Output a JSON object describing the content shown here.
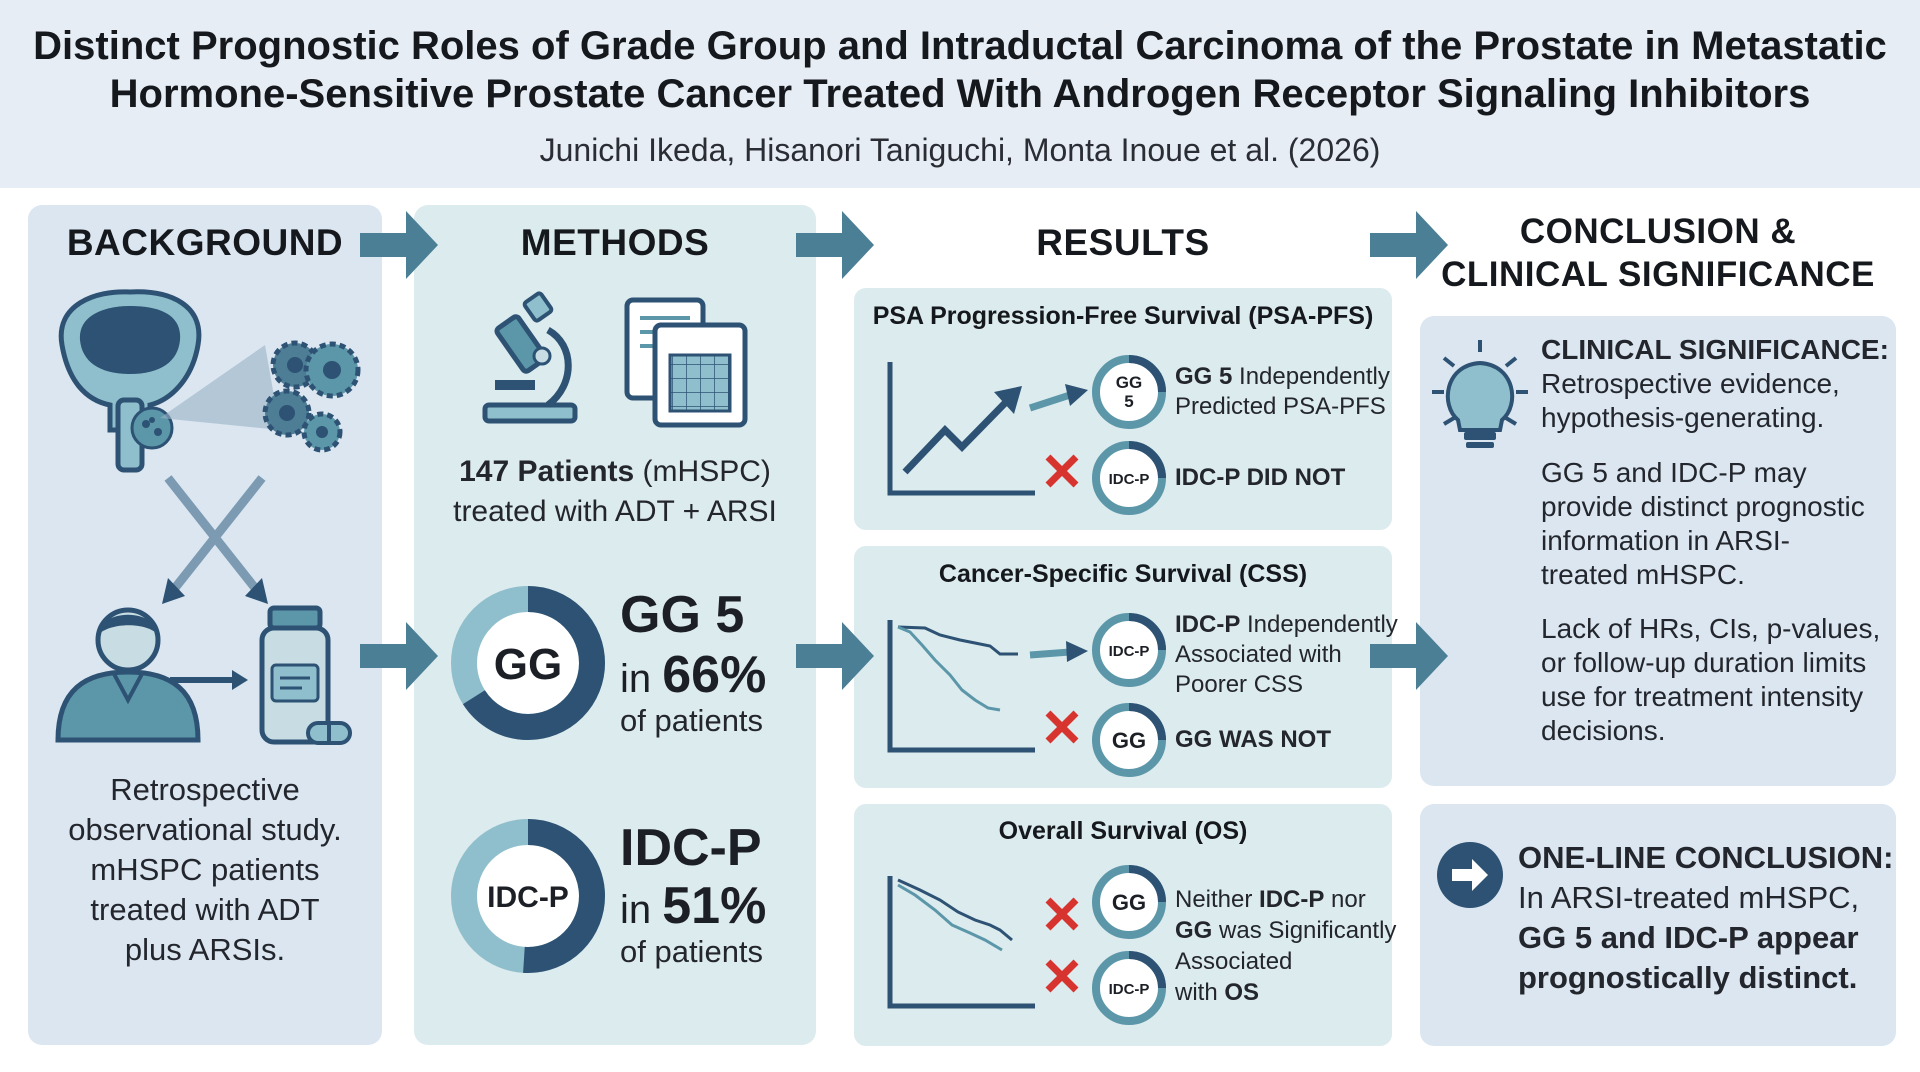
{
  "header": {
    "title_line1": "Distinct Prognostic Roles of Grade Group and Intraductal Carcinoma of the Prostate in Metastatic",
    "title_line2": "Hormone-Sensitive Prostate Cancer Treated With Androgen Receptor Signaling Inhibitors",
    "authors": "Junichi Ikeda, Hisanori Taniguchi, Monta Inoue et al. (2026)"
  },
  "background": {
    "heading": "BACKGROUND",
    "text_lines": [
      "Retrospective",
      "observational study.",
      "mHSPC patients",
      "treated with ADT",
      "plus ARSIs."
    ]
  },
  "methods": {
    "heading": "METHODS",
    "patients_bold": "147 Patients",
    "patients_rest": " (mHSPC)",
    "treatment": "treated with ADT + ARSI",
    "gg": {
      "ring_label": "GG",
      "big": "GG 5",
      "in": "in ",
      "percent": "66%",
      "percent_value": 66,
      "of": "of patients"
    },
    "idcp": {
      "ring_label": "IDC-P",
      "big": "IDC-P",
      "in": "in ",
      "percent": "51%",
      "percent_value": 51,
      "of": "of patients"
    }
  },
  "results": {
    "heading": "RESULTS",
    "pfs": {
      "title": "PSA Progression-Free Survival (PSA-PFS)",
      "gg_badge_line1": "GG",
      "gg_badge_line2": "5",
      "gg_text_bold": "GG 5",
      "gg_text_rest": " Independently",
      "gg_text_line2": "Predicted PSA-PFS",
      "idcp_badge": "IDC-P",
      "idcp_text": "IDC-P DID NOT"
    },
    "css": {
      "title": "Cancer-Specific Survival (CSS)",
      "idcp_badge": "IDC-P",
      "idcp_text_bold": "IDC-P",
      "idcp_text_rest": " Independently",
      "idcp_text_line2": "Associated with",
      "idcp_text_line3": "Poorer CSS",
      "gg_badge": "GG",
      "gg_text": "GG WAS NOT"
    },
    "os": {
      "title": "Overall Survival (OS)",
      "gg_badge": "GG",
      "idcp_badge": "IDC-P",
      "line1_a": "Neither ",
      "line1_b": "IDC-P",
      "line1_c": " nor",
      "line2_a": "GG",
      "line2_b": " was Significantly",
      "line3": "Associated",
      "line4_a": "with ",
      "line4_b": "OS"
    }
  },
  "conclusion": {
    "heading_line1": "CONCLUSION &",
    "heading_line2": "CLINICAL SIGNIFICANCE",
    "sig_title": "CLINICAL SIGNIFICANCE:",
    "sig_lines": [
      "Retrospective evidence,",
      "hypothesis-generating."
    ],
    "para2_lines": [
      "GG 5 and IDC-P may",
      "provide distinct prognostic",
      "information in ARSI-",
      "treated mHSPC."
    ],
    "para3_lines": [
      "Lack of HRs, CIs, p-values,",
      "or follow-up duration limits",
      "use for treatment intensity",
      "decisions."
    ],
    "one_line_title": "ONE-LINE CONCLUSION:",
    "one_line_1": "In ARSI-treated mHSPC,",
    "one_line_2": "GG 5 and IDC-P appear",
    "one_line_3": "prognostically distinct."
  },
  "colors": {
    "navy": "#2d5273",
    "teal": "#5b97a9",
    "light_teal": "#8fbfcc",
    "pale": "#c7dde3",
    "red_x": "#d7332f",
    "arrow": "#4b7f95"
  },
  "icons": [
    "prostate-icon",
    "cells-icon",
    "cross-arrows-icon",
    "patient-icon",
    "medicine-bottle-icon",
    "microscope-icon",
    "spreadsheet-icon",
    "lightbulb-icon",
    "arrow-circle-icon",
    "red-x-icon",
    "flow-arrow-icon"
  ]
}
